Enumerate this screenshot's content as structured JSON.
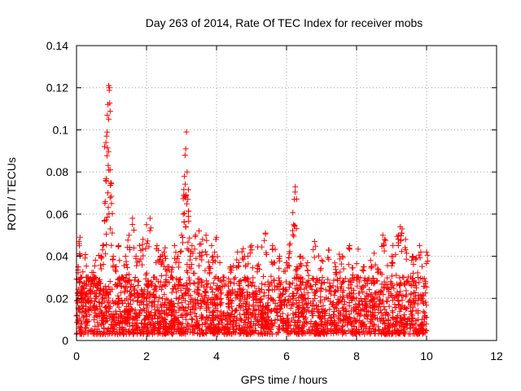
{
  "chart_data": {
    "type": "scatter",
    "title": "Day 263 of 2014, Rate Of TEC Index for receiver mobs",
    "xlabel": "GPS time / hours",
    "ylabel": "ROTI / TECUs",
    "xlim": [
      0,
      12
    ],
    "ylim": [
      0,
      0.14
    ],
    "x_ticks": [
      0,
      2,
      4,
      6,
      8,
      10,
      12
    ],
    "y_ticks": [
      0,
      0.02,
      0.04,
      0.06,
      0.08,
      0.1,
      0.12,
      0.14
    ],
    "x_tick_labels": [
      "0",
      "2",
      "4",
      "6",
      "8",
      "10",
      "12"
    ],
    "y_tick_labels": [
      "0",
      "0.02",
      "0.04",
      "0.06",
      "0.08",
      "0.1",
      "0.12",
      "0.14"
    ],
    "grid": true,
    "marker": "+",
    "series": [
      {
        "name": "ROTI",
        "color": "#ff0000",
        "x": [
          0.02,
          0.05,
          0.08,
          0.1,
          0.12,
          0.15,
          0.2,
          0.25,
          0.3,
          0.35,
          0.4,
          0.45,
          0.5,
          0.55,
          0.6,
          0.65,
          0.7,
          0.75,
          0.8,
          0.82,
          0.84,
          0.86,
          0.88,
          0.9,
          0.92,
          0.94,
          0.96,
          0.98,
          1.0,
          1.05,
          1.1,
          1.2,
          1.3,
          1.4,
          1.5,
          1.6,
          1.7,
          1.8,
          1.9,
          2.0,
          2.1,
          2.2,
          2.3,
          2.4,
          2.5,
          2.6,
          2.7,
          2.8,
          2.9,
          3.0,
          3.05,
          3.08,
          3.1,
          3.12,
          3.14,
          3.16,
          3.18,
          3.2,
          3.25,
          3.3,
          3.4,
          3.5,
          3.6,
          3.7,
          3.8,
          3.9,
          4.0,
          4.2,
          4.4,
          4.6,
          4.8,
          5.0,
          5.2,
          5.4,
          5.6,
          5.8,
          6.0,
          6.1,
          6.2,
          6.22,
          6.25,
          6.3,
          6.4,
          6.6,
          6.8,
          7.0,
          7.2,
          7.4,
          7.6,
          7.8,
          8.0,
          8.2,
          8.4,
          8.6,
          8.75,
          8.8,
          9.0,
          9.2,
          9.25,
          9.3,
          9.4,
          9.6,
          9.8,
          10.0
        ],
        "y": [
          0.012,
          0.035,
          0.045,
          0.049,
          0.03,
          0.02,
          0.025,
          0.018,
          0.03,
          0.015,
          0.022,
          0.028,
          0.03,
          0.02,
          0.025,
          0.018,
          0.04,
          0.045,
          0.057,
          0.066,
          0.094,
          0.097,
          0.107,
          0.112,
          0.121,
          0.12,
          0.081,
          0.075,
          0.065,
          0.04,
          0.035,
          0.045,
          0.03,
          0.04,
          0.05,
          0.058,
          0.04,
          0.045,
          0.048,
          0.055,
          0.058,
          0.03,
          0.045,
          0.04,
          0.042,
          0.035,
          0.03,
          0.045,
          0.04,
          0.05,
          0.06,
          0.078,
          0.088,
          0.091,
          0.099,
          0.08,
          0.067,
          0.059,
          0.04,
          0.045,
          0.05,
          0.052,
          0.048,
          0.05,
          0.035,
          0.04,
          0.049,
          0.03,
          0.035,
          0.042,
          0.04,
          0.045,
          0.036,
          0.051,
          0.045,
          0.04,
          0.037,
          0.046,
          0.055,
          0.067,
          0.073,
          0.035,
          0.04,
          0.037,
          0.047,
          0.038,
          0.043,
          0.035,
          0.04,
          0.045,
          0.03,
          0.035,
          0.038,
          0.034,
          0.05,
          0.048,
          0.04,
          0.05,
          0.054,
          0.053,
          0.048,
          0.04,
          0.045,
          0.042
        ],
        "baseline_band": [
          0.003,
          0.03
        ],
        "note": "Dense cloud of several thousand '+' markers from 0 to 10 h, mostly 0.005-0.03 TECUs, with sparse excursions listed above."
      }
    ]
  }
}
